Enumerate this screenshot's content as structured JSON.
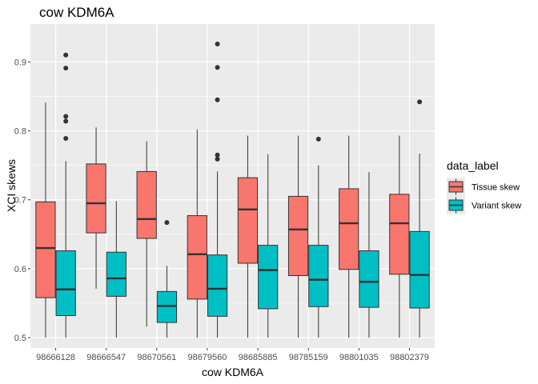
{
  "chart_data": {
    "type": "boxplot",
    "title": "cow KDM6A",
    "xlabel": "cow KDM6A",
    "ylabel": "XCI skews",
    "ylim": [
      0.485,
      0.955
    ],
    "yticks": [
      0.5,
      0.6,
      0.7,
      0.8,
      0.9
    ],
    "ytick_labels": [
      "0.5",
      "0.6",
      "0.7",
      "0.8",
      "0.9"
    ],
    "grid": true,
    "legend": {
      "title": "data_label",
      "placement": "right",
      "entries": [
        "Tissue skew",
        "Variant skew"
      ]
    },
    "categories": [
      "98666128",
      "98666547",
      "98670561",
      "98679560",
      "98685885",
      "98785159",
      "98801035",
      "98802379"
    ],
    "series": [
      {
        "name": "Tissue skew",
        "color": "#F8766D",
        "boxes": [
          {
            "min": 0.5,
            "q1": 0.558,
            "median": 0.63,
            "q3": 0.697,
            "max": 0.841,
            "outliers": []
          },
          {
            "min": 0.571,
            "q1": 0.652,
            "median": 0.695,
            "q3": 0.752,
            "max": 0.805,
            "outliers": []
          },
          {
            "min": 0.516,
            "q1": 0.644,
            "median": 0.672,
            "q3": 0.741,
            "max": 0.785,
            "outliers": []
          },
          {
            "min": 0.5,
            "q1": 0.556,
            "median": 0.621,
            "q3": 0.677,
            "max": 0.802,
            "outliers": []
          },
          {
            "min": 0.5,
            "q1": 0.608,
            "median": 0.686,
            "q3": 0.732,
            "max": 0.793,
            "outliers": []
          },
          {
            "min": 0.5,
            "q1": 0.59,
            "median": 0.657,
            "q3": 0.705,
            "max": 0.793,
            "outliers": []
          },
          {
            "min": 0.5,
            "q1": 0.599,
            "median": 0.666,
            "q3": 0.716,
            "max": 0.793,
            "outliers": []
          },
          {
            "min": 0.5,
            "q1": 0.592,
            "median": 0.666,
            "q3": 0.708,
            "max": 0.793,
            "outliers": []
          }
        ]
      },
      {
        "name": "Variant skew",
        "color": "#00BFC4",
        "boxes": [
          {
            "min": 0.5,
            "q1": 0.532,
            "median": 0.57,
            "q3": 0.626,
            "max": 0.756,
            "outliers": [
              0.789,
              0.814,
              0.821,
              0.891,
              0.91
            ]
          },
          {
            "min": 0.5,
            "q1": 0.56,
            "median": 0.586,
            "q3": 0.624,
            "max": 0.698,
            "outliers": []
          },
          {
            "min": 0.5,
            "q1": 0.522,
            "median": 0.546,
            "q3": 0.567,
            "max": 0.604,
            "outliers": [
              0.667
            ]
          },
          {
            "min": 0.5,
            "q1": 0.531,
            "median": 0.571,
            "q3": 0.62,
            "max": 0.741,
            "outliers": [
              0.759,
              0.765,
              0.845,
              0.892,
              0.926
            ]
          },
          {
            "min": 0.5,
            "q1": 0.542,
            "median": 0.598,
            "q3": 0.634,
            "max": 0.766,
            "outliers": []
          },
          {
            "min": 0.5,
            "q1": 0.545,
            "median": 0.584,
            "q3": 0.634,
            "max": 0.75,
            "outliers": [
              0.788
            ]
          },
          {
            "min": 0.5,
            "q1": 0.544,
            "median": 0.581,
            "q3": 0.626,
            "max": 0.74,
            "outliers": []
          },
          {
            "min": 0.5,
            "q1": 0.543,
            "median": 0.591,
            "q3": 0.654,
            "max": 0.767,
            "outliers": [
              0.842
            ]
          }
        ]
      }
    ]
  }
}
